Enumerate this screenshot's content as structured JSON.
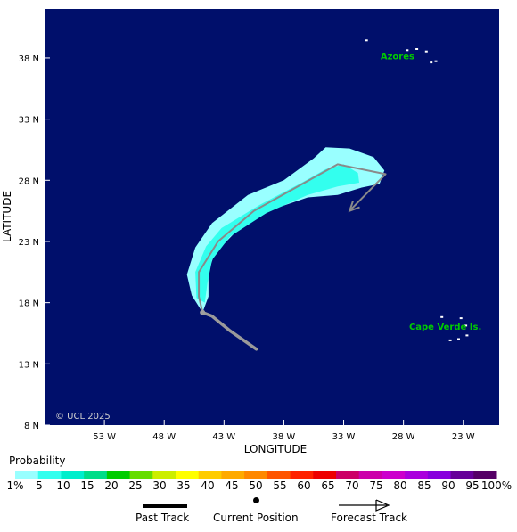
{
  "map": {
    "axes": {
      "x_title": "LONGITUDE",
      "y_title": "LATITUDE",
      "x_ticks": [
        {
          "label": "53 W",
          "lon": -53
        },
        {
          "label": "48 W",
          "lon": -48
        },
        {
          "label": "43 W",
          "lon": -43
        },
        {
          "label": "38 W",
          "lon": -38
        },
        {
          "label": "33 W",
          "lon": -33
        },
        {
          "label": "28 W",
          "lon": -28
        },
        {
          "label": "23 W",
          "lon": -23
        }
      ],
      "y_ticks": [
        {
          "label": "8 N",
          "lat": 8
        },
        {
          "label": "13 N",
          "lat": 13
        },
        {
          "label": "18 N",
          "lat": 18
        },
        {
          "label": "23 N",
          "lat": 23
        },
        {
          "label": "28 N",
          "lat": 28
        },
        {
          "label": "33 N",
          "lat": 33
        },
        {
          "label": "38 N",
          "lat": 38
        }
      ],
      "lon_range": [
        -58,
        -20
      ],
      "lat_range": [
        8,
        42
      ]
    },
    "places": [
      {
        "label": "Azores",
        "lon": -28.5,
        "lat": 37.9,
        "color": "#00cc00"
      },
      {
        "label": "Cape Verde Is.",
        "lon": -24.5,
        "lat": 15.8,
        "color": "#00cc00"
      }
    ],
    "credit": "© UCL 2025",
    "past_track": [
      [
        -40.3,
        14.2
      ],
      [
        -42.5,
        15.7
      ],
      [
        -44.0,
        16.9
      ],
      [
        -44.8,
        17.2
      ]
    ],
    "current_position": [
      -44.8,
      17.2
    ],
    "forecast_track": [
      [
        -44.8,
        17.2
      ],
      [
        -45.1,
        18.5
      ],
      [
        -45.1,
        20.5
      ],
      [
        -43.5,
        23.0
      ],
      [
        -40.5,
        25.5
      ],
      [
        -33.5,
        29.3
      ],
      [
        -29.5,
        28.5
      ],
      [
        -32.5,
        25.5
      ]
    ],
    "probability_band": {
      "outer": [
        [
          -45.7,
          18.6
        ],
        [
          -46.1,
          20.3
        ],
        [
          -45.4,
          22.5
        ],
        [
          -44.0,
          24.5
        ],
        [
          -41.0,
          26.8
        ],
        [
          -38.0,
          28.0
        ],
        [
          -35.5,
          29.8
        ],
        [
          -34.5,
          30.7
        ],
        [
          -32.5,
          30.6
        ],
        [
          -30.5,
          29.9
        ],
        [
          -29.6,
          28.8
        ],
        [
          -30.0,
          27.7
        ],
        [
          -31.5,
          27.4
        ],
        [
          -33.5,
          26.8
        ],
        [
          -36.0,
          26.6
        ],
        [
          -39.0,
          25.6
        ],
        [
          -42.0,
          23.8
        ],
        [
          -43.8,
          22.0
        ],
        [
          -44.3,
          20.5
        ],
        [
          -44.3,
          18.5
        ],
        [
          -44.8,
          17.2
        ]
      ],
      "inner": [
        [
          -45.3,
          18.4
        ],
        [
          -45.4,
          20.5
        ],
        [
          -44.5,
          22.6
        ],
        [
          -43.2,
          24.1
        ],
        [
          -40.0,
          26.0
        ],
        [
          -36.5,
          27.8
        ],
        [
          -34.5,
          28.9
        ],
        [
          -33.0,
          29.3
        ],
        [
          -31.8,
          28.6
        ],
        [
          -31.7,
          27.8
        ],
        [
          -33.5,
          27.5
        ],
        [
          -36.0,
          26.8
        ],
        [
          -39.5,
          25.3
        ],
        [
          -42.5,
          23.4
        ],
        [
          -44.0,
          21.5
        ],
        [
          -44.4,
          19.5
        ],
        [
          -44.6,
          18.0
        ]
      ]
    }
  },
  "legend": {
    "title": "Probability",
    "labels": [
      "1%",
      "5",
      "10",
      "15",
      "20",
      "25",
      "30",
      "35",
      "40",
      "45",
      "50",
      "55",
      "60",
      "65",
      "70",
      "75",
      "80",
      "85",
      "90",
      "95",
      "100%"
    ],
    "colors": [
      "#99ffff",
      "#33ffee",
      "#00eecc",
      "#00dd88",
      "#00cc00",
      "#66dd00",
      "#ccee00",
      "#ffff00",
      "#ffcc00",
      "#ffaa00",
      "#ff8800",
      "#ff5500",
      "#ff2200",
      "#ee0000",
      "#cc0066",
      "#cc00aa",
      "#cc00cc",
      "#aa00dd",
      "#8800dd",
      "#660099",
      "#550066"
    ]
  },
  "keys": {
    "past_track": "Past Track",
    "current_position": "Current Position",
    "forecast_track": "Forecast Track"
  }
}
